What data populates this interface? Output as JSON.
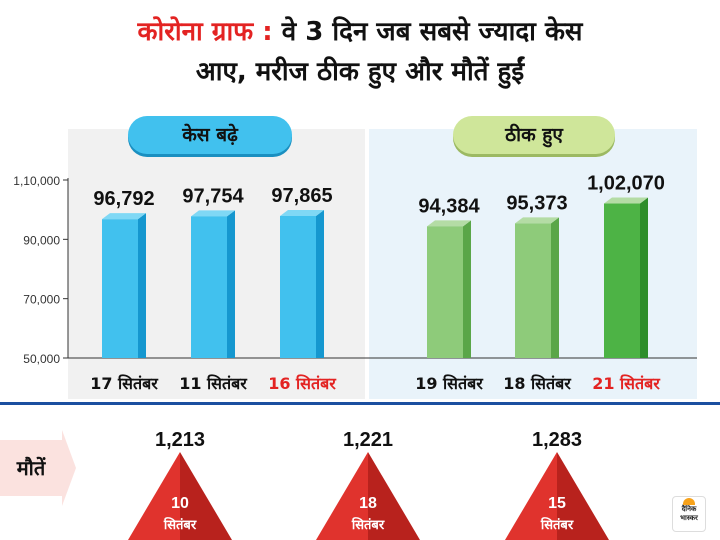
{
  "title": {
    "highlight": "कोरोना ग्राफ :",
    "line1_rest": "वे 3 दिन जब सबसे ज्यादा केस",
    "line2": "आए, मरीज ठीक हुए और मौतें हुईं"
  },
  "colors": {
    "accent_red": "#e32322",
    "cases_bar": "#41c1ee",
    "recovered_bar_light": "#8ecb7a",
    "recovered_bar_dark": "#4db345",
    "deaths_triangle": "#e0332d"
  },
  "chart_data": [
    {
      "type": "bar",
      "series": [
        {
          "name": "केस बढ़े",
          "categories": [
            "17 सितंबर",
            "11 सितंबर",
            "16 सितंबर"
          ],
          "values": [
            96792,
            97754,
            97865
          ],
          "value_labels": [
            "96,792",
            "97,754",
            "97,865"
          ],
          "highlighted_category": "16 सितंबर"
        },
        {
          "name": "ठीक हुए",
          "categories": [
            "19 सितंबर",
            "18 सितंबर",
            "21 सितंबर"
          ],
          "values": [
            94384,
            95373,
            102070
          ],
          "value_labels": [
            "94,384",
            "95,373",
            "1,02,070"
          ],
          "highlighted_category": "21 सितंबर"
        }
      ],
      "yticks": [
        "50,000",
        "70,000",
        "90,000",
        "1,10,000"
      ],
      "ytick_values": [
        50000,
        70000,
        90000,
        110000
      ],
      "ylim": [
        50000,
        110000
      ],
      "grid": false
    },
    {
      "type": "triangle-markers",
      "label": "मौतें",
      "items": [
        {
          "value": 1213,
          "value_label": "1,213",
          "day": "10",
          "month": "सितंबर"
        },
        {
          "value": 1221,
          "value_label": "1,221",
          "day": "18",
          "month": "सितंबर"
        },
        {
          "value": 1283,
          "value_label": "1,283",
          "day": "15",
          "month": "सितंबर"
        }
      ]
    }
  ],
  "logo_text": "दैनिक भास्कर"
}
